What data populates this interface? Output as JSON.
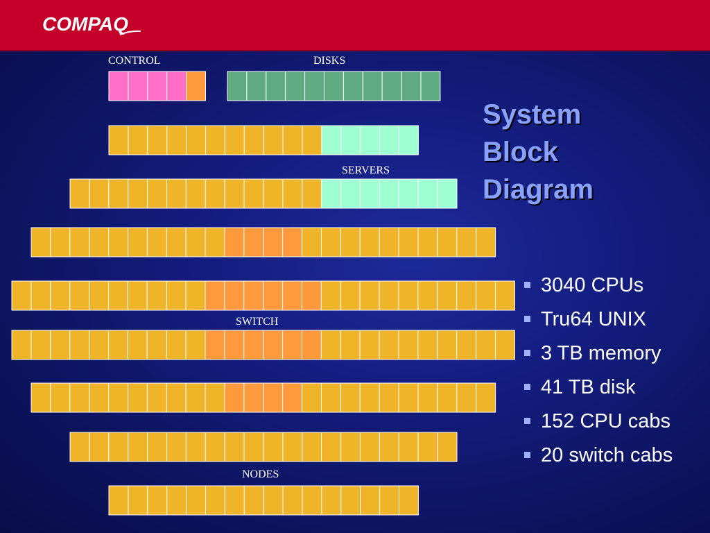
{
  "header": {
    "logo_text": "COMPAQ",
    "header_color": "#c4002a"
  },
  "title": {
    "line1": "System",
    "line2": "Block",
    "line3": "Diagram"
  },
  "labels": {
    "control": "CONTROL",
    "disks": "DISKS",
    "servers": "SERVERS",
    "switch": "SWITCH",
    "nodes": "NODES"
  },
  "bullets": [
    "3040 CPUs",
    "Tru64 UNIX",
    "3 TB memory",
    "41 TB disk",
    "152 CPU cabs",
    "20 switch cabs"
  ],
  "colors": {
    "control": "#ff6ec7",
    "control_accent": "#ff9a3c",
    "disk": "#5faa80",
    "node": "#f0b429",
    "server": "#9dffd2",
    "switch": "#ff9a3c",
    "title": "#8aa2ff",
    "bullet": "#9fb0ff"
  },
  "diagram": {
    "rows": [
      {
        "name": "control-row",
        "segments": [
          {
            "n": 4,
            "c": "control"
          },
          {
            "n": 1,
            "c": "control_accent"
          }
        ]
      },
      {
        "name": "disks-row",
        "segments": [
          {
            "n": 11,
            "c": "disk"
          }
        ]
      },
      {
        "name": "rack-row-1",
        "segments": [
          {
            "n": 11,
            "c": "node"
          },
          {
            "n": 5,
            "c": "server"
          }
        ]
      },
      {
        "name": "rack-row-2",
        "segments": [
          {
            "n": 13,
            "c": "node"
          },
          {
            "n": 7,
            "c": "server"
          }
        ]
      },
      {
        "name": "rack-row-3",
        "segments": [
          {
            "n": 10,
            "c": "node"
          },
          {
            "n": 4,
            "c": "switch"
          },
          {
            "n": 10,
            "c": "node"
          }
        ]
      },
      {
        "name": "rack-row-4",
        "segments": [
          {
            "n": 10,
            "c": "node"
          },
          {
            "n": 6,
            "c": "switch"
          },
          {
            "n": 10,
            "c": "node"
          }
        ]
      },
      {
        "name": "rack-row-5",
        "segments": [
          {
            "n": 10,
            "c": "node"
          },
          {
            "n": 6,
            "c": "switch"
          },
          {
            "n": 10,
            "c": "node"
          }
        ]
      },
      {
        "name": "rack-row-6",
        "segments": [
          {
            "n": 10,
            "c": "node"
          },
          {
            "n": 4,
            "c": "switch"
          },
          {
            "n": 10,
            "c": "node"
          }
        ]
      },
      {
        "name": "rack-row-7",
        "segments": [
          {
            "n": 20,
            "c": "node"
          }
        ]
      },
      {
        "name": "rack-row-8",
        "segments": [
          {
            "n": 16,
            "c": "node"
          }
        ]
      }
    ]
  }
}
